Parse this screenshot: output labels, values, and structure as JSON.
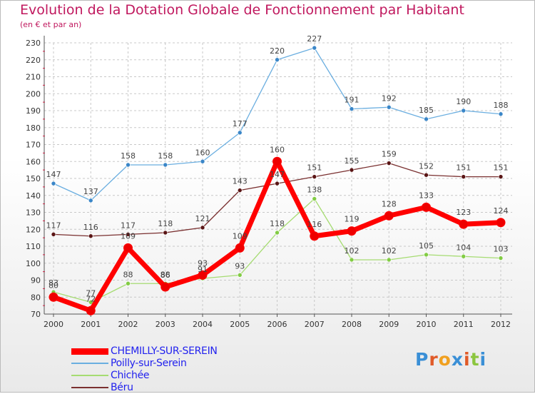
{
  "header": {
    "title": "Evolution de la Dotation Globale de Fonctionnement par Habitant",
    "subtitle": "(en € et par an)"
  },
  "brand": {
    "logo_text": "Proxiti",
    "logo_colors": [
      "#3a8fd6",
      "#e05a28",
      "#f0a020",
      "#3a8fd6",
      "#e05a28",
      "#8cc63f",
      "#3a8fd6"
    ]
  },
  "chart_data": {
    "type": "line",
    "x": [
      "2000",
      "2001",
      "2002",
      "2003",
      "2004",
      "2005",
      "2006",
      "2007",
      "2008",
      "2009",
      "2010",
      "2011",
      "2012"
    ],
    "ylim": [
      70,
      230
    ],
    "yticks": [
      "70",
      "80",
      "90",
      "100",
      "110",
      "120",
      "130",
      "140",
      "150",
      "160",
      "170",
      "180",
      "190",
      "200",
      "210",
      "220",
      "230"
    ],
    "grid": true,
    "legend_position": "bottom-left",
    "series": [
      {
        "name": "Poilly-sur-Serein",
        "color": "#6aaee0",
        "marker": "#3a86c8",
        "width": 1.3,
        "values": [
          147,
          137,
          158,
          158,
          160,
          177,
          220,
          227,
          191,
          192,
          185,
          190,
          188
        ],
        "labels": [
          "147",
          "137",
          "158",
          "158",
          "160",
          "177",
          "220",
          "227",
          "191",
          "192",
          "185",
          "190",
          "188"
        ]
      },
      {
        "name": "Béru",
        "color": "#7a3030",
        "marker": "#5a1515",
        "width": 1.3,
        "values": [
          117,
          116,
          117,
          118,
          121,
          143,
          147,
          151,
          155,
          159,
          152,
          151,
          151
        ],
        "labels": [
          "117",
          "116",
          "117",
          "118",
          "121",
          "143",
          "147",
          "151",
          "155",
          "159",
          "152",
          "151",
          "151"
        ]
      },
      {
        "name": "Chichée",
        "color": "#a6dc72",
        "marker": "#82cc44",
        "width": 1.3,
        "values": [
          83,
          77,
          88,
          88,
          91,
          93,
          118,
          138,
          102,
          102,
          105,
          104,
          103
        ],
        "labels": [
          "83",
          "77",
          "88",
          "88",
          "91",
          "93",
          "118",
          "138",
          "102",
          "102",
          "105",
          "104",
          "103"
        ]
      },
      {
        "name": "CHEMILLY-SUR-SEREIN",
        "color": "#ff0000",
        "marker": "#ee0000",
        "width": 7,
        "values": [
          80,
          72,
          109,
          86,
          93,
          109,
          160,
          116,
          119,
          128,
          133,
          123,
          124
        ],
        "labels": [
          "80",
          "72",
          "109",
          "86",
          "93",
          "109",
          "160",
          "116",
          "119",
          "128",
          "133",
          "123",
          "124"
        ]
      }
    ]
  },
  "legend": [
    {
      "label": "CHEMILLY-SUR-SEREIN",
      "color": "#ff0000",
      "thickness": 9
    },
    {
      "label": "Poilly-sur-Serein",
      "color": "#6aaee0",
      "thickness": 2
    },
    {
      "label": "Chichée",
      "color": "#a6dc72",
      "thickness": 2
    },
    {
      "label": "Béru",
      "color": "#7a3030",
      "thickness": 2
    }
  ]
}
